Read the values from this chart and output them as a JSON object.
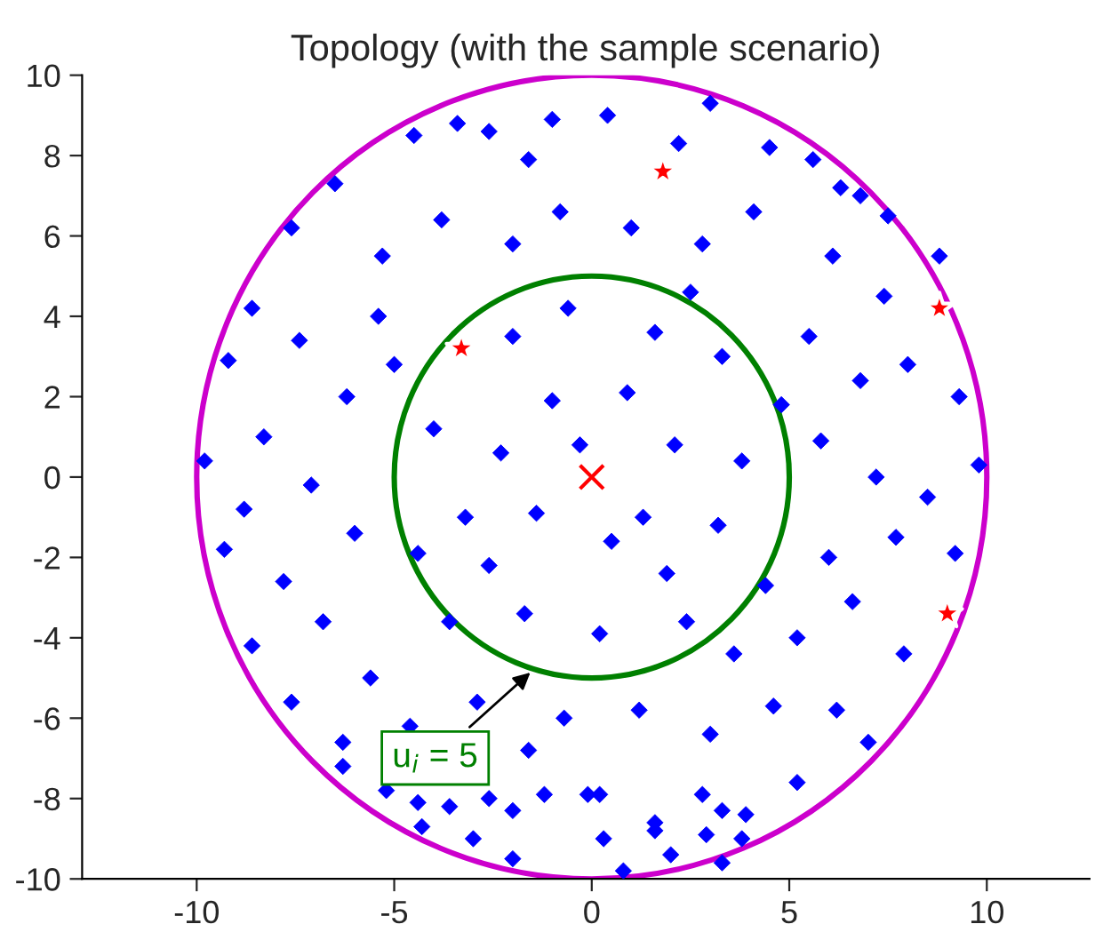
{
  "chart_data": {
    "type": "scatter",
    "title": "Topology (with the sample scenario)",
    "xlim": [
      -12.9,
      12.6
    ],
    "ylim": [
      -10,
      10
    ],
    "xticks": [
      -10,
      -5,
      0,
      5,
      10
    ],
    "yticks": [
      -10,
      -8,
      -6,
      -4,
      -2,
      0,
      2,
      4,
      6,
      8,
      10
    ],
    "grid": false,
    "series": [
      {
        "type": "scatter",
        "color": "#0000ff",
        "marker": "diamond",
        "x": [
          -4.5,
          -3.4,
          -2.6,
          -1.6,
          0.4,
          2.2,
          4.5,
          5.6,
          6.3,
          7.5,
          -6.5,
          -7.6,
          -5.3,
          -3.8,
          -2.0,
          -0.8,
          1.0,
          2.8,
          4.1,
          6.1,
          7.4,
          -8.6,
          -9.2,
          -7.4,
          -6.2,
          -5.4,
          -2.0,
          -0.6,
          1.6,
          3.3,
          5.5,
          6.8,
          8.0,
          9.3,
          -9.8,
          -8.3,
          -7.1,
          -4.0,
          -2.3,
          -1.0,
          0.9,
          2.1,
          3.8,
          5.8,
          7.2,
          8.5,
          9.8,
          -9.3,
          -7.8,
          -6.0,
          -4.4,
          -2.6,
          -1.4,
          0.5,
          1.9,
          3.2,
          4.4,
          6.0,
          7.7,
          9.2,
          -8.6,
          -6.8,
          -5.6,
          -3.6,
          -1.7,
          0.2,
          2.4,
          3.6,
          5.2,
          6.6,
          7.9,
          -7.6,
          -6.3,
          -4.6,
          -2.9,
          -0.7,
          1.2,
          3.0,
          4.6,
          6.2,
          7.0,
          -5.2,
          -4.4,
          -3.6,
          -2.6,
          -2.0,
          -1.2,
          -0.1,
          0.2,
          1.6,
          2.8,
          3.3,
          3.9,
          -4.3,
          -3.0,
          -2.0,
          0.3,
          1.6,
          2.0,
          2.9,
          3.3,
          3.8,
          0.8,
          5.2,
          -6.3,
          -1.0,
          3.0,
          -8.8,
          8.8,
          -3.2,
          1.3,
          -0.3,
          4.8,
          -5.0,
          2.5,
          -1.6,
          6.8
        ],
        "values": [
          8.5,
          8.8,
          8.6,
          7.9,
          9.0,
          8.3,
          8.2,
          7.9,
          7.2,
          6.5,
          7.3,
          6.2,
          5.5,
          6.4,
          5.8,
          6.6,
          6.2,
          5.8,
          6.6,
          5.5,
          4.5,
          4.2,
          2.9,
          3.4,
          2.0,
          4.0,
          3.5,
          4.2,
          3.6,
          3.0,
          3.5,
          2.4,
          2.8,
          2.0,
          0.4,
          1.0,
          -0.2,
          1.2,
          0.6,
          1.9,
          2.1,
          0.8,
          0.4,
          0.9,
          0.0,
          -0.5,
          0.3,
          -1.8,
          -2.6,
          -1.4,
          -1.9,
          -2.2,
          -0.9,
          -1.6,
          -2.4,
          -1.2,
          -2.7,
          -2.0,
          -1.5,
          -1.9,
          -4.2,
          -3.6,
          -5.0,
          -3.6,
          -3.4,
          -3.9,
          -3.6,
          -4.4,
          -4.0,
          -3.1,
          -4.4,
          -5.6,
          -6.6,
          -6.2,
          -5.6,
          -6.0,
          -5.8,
          -6.4,
          -5.7,
          -5.8,
          -6.6,
          -7.8,
          -8.1,
          -8.2,
          -8.0,
          -8.3,
          -7.9,
          -7.9,
          -7.9,
          -8.6,
          -7.9,
          -8.3,
          -8.4,
          -8.7,
          -9.0,
          -9.5,
          -9.0,
          -8.8,
          -9.4,
          -8.9,
          -9.6,
          -9.0,
          -9.8,
          -7.6,
          -7.2,
          8.9,
          9.3,
          -0.8,
          5.5,
          -1.0,
          -1.0,
          0.8,
          1.8,
          2.8,
          4.6,
          -6.8,
          7.0
        ]
      },
      {
        "type": "scatter",
        "color": "#ff0000",
        "marker": "star",
        "x": [
          1.8,
          -3.3,
          8.8,
          9.0
        ],
        "values": [
          7.6,
          3.2,
          4.2,
          -3.4
        ]
      },
      {
        "type": "scatter",
        "color": "#ff0000",
        "marker": "cross",
        "x": [
          0
        ],
        "values": [
          0
        ]
      }
    ],
    "annotations": [
      "u$_{i}$ = 5"
    ]
  }
}
